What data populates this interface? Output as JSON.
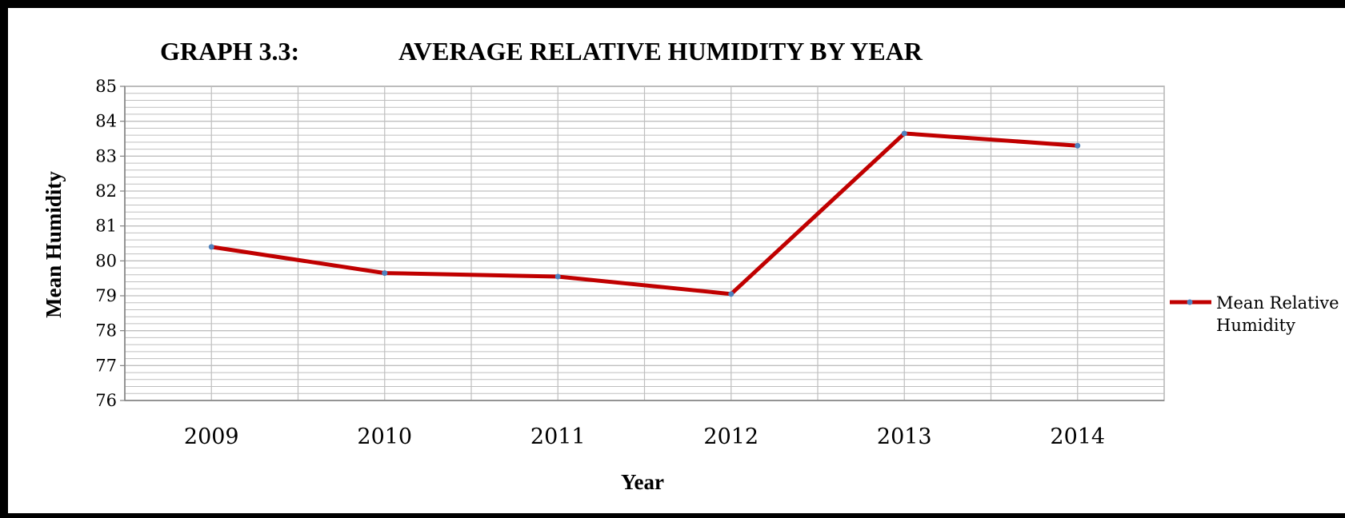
{
  "chart_data": {
    "type": "line",
    "title_prefix": "GRAPH 3.3:",
    "title": "AVERAGE RELATIVE HUMIDITY BY YEAR",
    "xlabel": "Year",
    "ylabel": "Mean Humidity",
    "categories": [
      "2009",
      "2010",
      "2011",
      "2012",
      "2013",
      "2014"
    ],
    "series": [
      {
        "name": "Mean Relative Humidity",
        "values": [
          80.4,
          79.65,
          79.55,
          79.05,
          83.65,
          83.3
        ],
        "color": "#c00000",
        "marker_color": "#4f81bd"
      }
    ],
    "ylim": [
      76,
      85
    ],
    "yticks": [
      "76",
      "77",
      "78",
      "79",
      "80",
      "81",
      "82",
      "83",
      "84",
      "85"
    ],
    "grid": true,
    "legend_position": "right"
  }
}
